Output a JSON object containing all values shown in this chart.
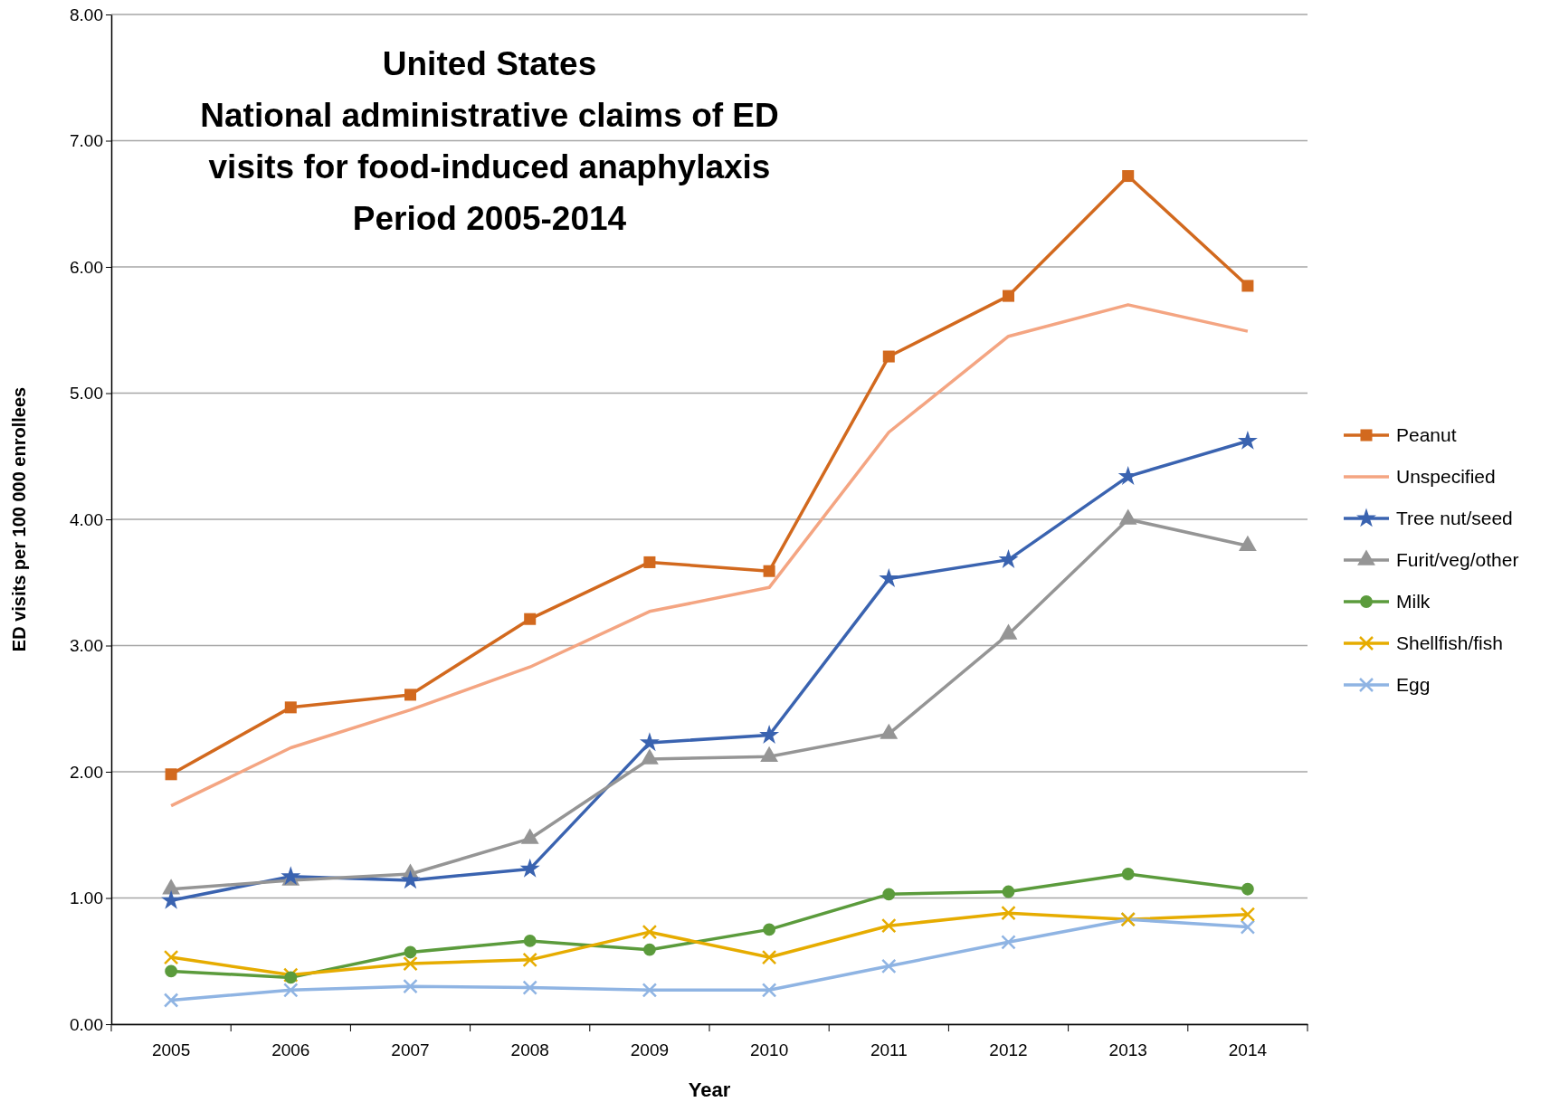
{
  "chart_data": {
    "type": "line",
    "title": "United States\nNational administrative claims of ED\nvisits for food-induced anaphylaxis\nPeriod 2005-2014",
    "xlabel": "Year",
    "ylabel": "ED visits per 100 000 enrollees",
    "categories": [
      "2005",
      "2006",
      "2007",
      "2008",
      "2009",
      "2010",
      "2011",
      "2012",
      "2013",
      "2014"
    ],
    "ylim": [
      0,
      8
    ],
    "yticks": [
      {
        "value": 0,
        "label": "0.00"
      },
      {
        "value": 1,
        "label": "1.00"
      },
      {
        "value": 2,
        "label": "2.00"
      },
      {
        "value": 3,
        "label": "3.00"
      },
      {
        "value": 4,
        "label": "4.00"
      },
      {
        "value": 5,
        "label": "5.00"
      },
      {
        "value": 6,
        "label": "6.00"
      },
      {
        "value": 7,
        "label": "7.00"
      },
      {
        "value": 8,
        "label": "8.00"
      }
    ],
    "grid": "y",
    "legend": "right",
    "series": [
      {
        "name": "Peanut",
        "color": "#d2691e",
        "marker": "square",
        "values": [
          1.98,
          2.51,
          2.61,
          3.21,
          3.66,
          3.59,
          5.29,
          5.77,
          6.72,
          5.85
        ]
      },
      {
        "name": "Unspecified",
        "color": "#f4a582",
        "marker": "none",
        "values": [
          1.73,
          2.19,
          2.49,
          2.83,
          3.27,
          3.46,
          4.69,
          5.45,
          5.7,
          5.49
        ]
      },
      {
        "name": "Tree nut/seed",
        "color": "#3a63b0",
        "marker": "star",
        "values": [
          0.98,
          1.17,
          1.14,
          1.23,
          2.23,
          2.29,
          3.53,
          3.68,
          4.34,
          4.62
        ]
      },
      {
        "name": "Furit/veg/other",
        "color": "#959595",
        "marker": "triangle",
        "values": [
          1.07,
          1.14,
          1.19,
          1.47,
          2.1,
          2.12,
          2.3,
          3.09,
          4.0,
          3.79
        ]
      },
      {
        "name": "Milk",
        "color": "#5b9b3c",
        "marker": "circle",
        "values": [
          0.42,
          0.37,
          0.57,
          0.66,
          0.59,
          0.75,
          1.03,
          1.05,
          1.19,
          1.07
        ]
      },
      {
        "name": "Shellfish/fish",
        "color": "#e6ac00",
        "marker": "cross",
        "values": [
          0.53,
          0.39,
          0.48,
          0.51,
          0.73,
          0.53,
          0.78,
          0.88,
          0.83,
          0.87
        ]
      },
      {
        "name": "Egg",
        "color": "#8fb4e3",
        "marker": "cross",
        "values": [
          0.19,
          0.27,
          0.3,
          0.29,
          0.27,
          0.27,
          0.46,
          0.65,
          0.83,
          0.77
        ]
      }
    ]
  }
}
